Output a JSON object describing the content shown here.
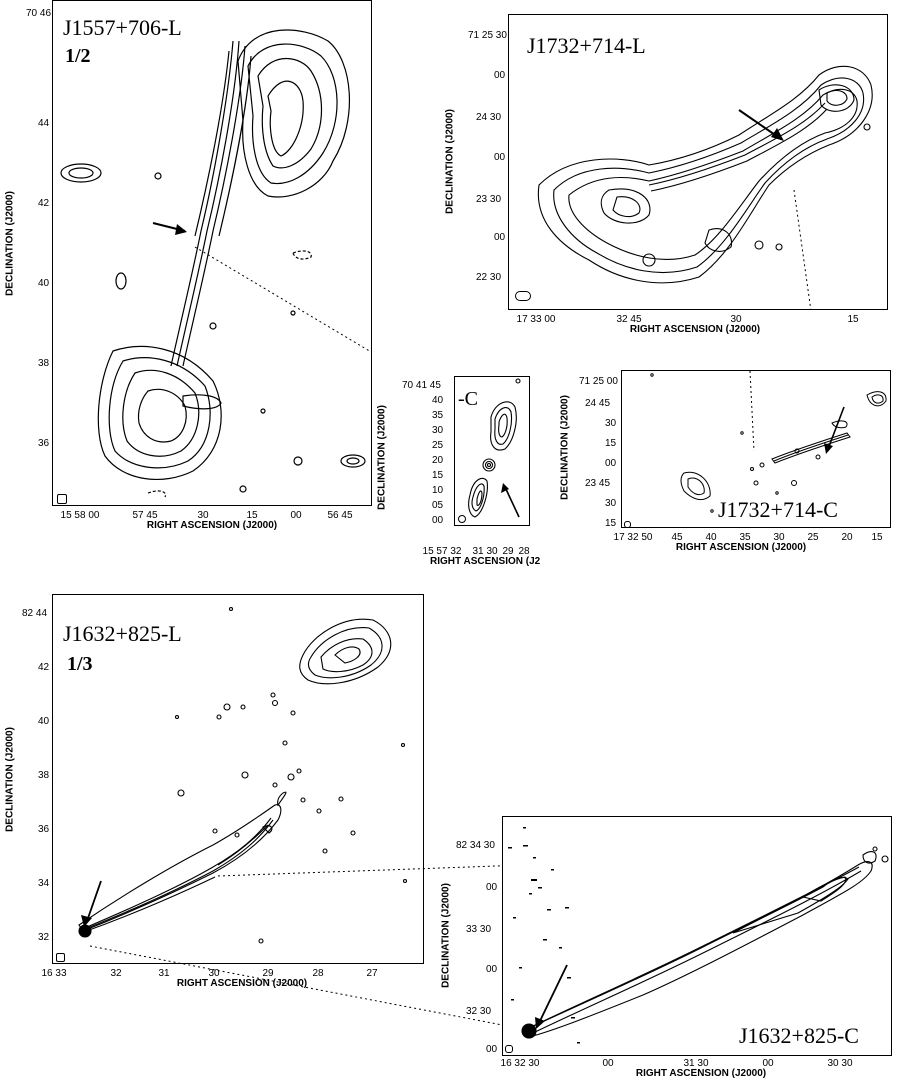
{
  "panels": {
    "p1": {
      "title": "J1557+706-L",
      "fraction": "1/2",
      "xlabel": "RIGHT ASCENSION (J2000)",
      "ylabel": "DECLINATION (J2000)",
      "dec_ticks": [
        "70 46",
        "44",
        "42",
        "40",
        "38",
        "36"
      ],
      "ra_ticks": [
        "15 58 00",
        "57 45",
        "30",
        "15",
        "00",
        "56 45"
      ]
    },
    "p2": {
      "title": "J1732+714-L",
      "xlabel": "RIGHT ASCENSION (J2000)",
      "ylabel": "DECLINATION (J2000)",
      "dec_ticks": [
        "71 25 30",
        "00",
        "24 30",
        "00",
        "23 30",
        "00",
        "22 30"
      ],
      "ra_ticks": [
        "17 33 00",
        "32 45",
        "30",
        "15"
      ]
    },
    "p3": {
      "title": "-C",
      "xlabel": "RIGHT ASCENSION (J2",
      "ylabel": "DECLINATION (J2000)",
      "dec_ticks": [
        "70 41 45",
        "40",
        "35",
        "30",
        "25",
        "20",
        "15",
        "10",
        "05",
        "00"
      ],
      "ra_ticks": [
        "15 57 32",
        "31",
        "30",
        "29",
        "28"
      ]
    },
    "p4": {
      "title": "J1732+714-C",
      "xlabel": "RIGHT ASCENSION (J2000)",
      "ylabel": "DECLINATION (J2000)",
      "dec_ticks": [
        "71 25 00",
        "24 45",
        "30",
        "15",
        "00",
        "23 45",
        "30",
        "15"
      ],
      "ra_ticks": [
        "17 32 50",
        "45",
        "40",
        "35",
        "30",
        "25",
        "20",
        "15"
      ]
    },
    "p5": {
      "title": "J1632+825-L",
      "fraction": "1/3",
      "xlabel": "RIGHT ASCENSION (J2000)",
      "ylabel": "DECLINATION (J2000)",
      "dec_ticks": [
        "82 44",
        "42",
        "40",
        "38",
        "36",
        "34",
        "32"
      ],
      "ra_ticks": [
        "16 33",
        "32",
        "31",
        "30",
        "29",
        "28",
        "27"
      ]
    },
    "p6": {
      "title": "J1632+825-C",
      "xlabel": "RIGHT ASCENSION (J2000)",
      "ylabel": "DECLINATION (J2000)",
      "dec_ticks": [
        "82 34 30",
        "00",
        "33 30",
        "00",
        "32 30",
        "00"
      ],
      "ra_ticks": [
        "16 32 30",
        "00",
        "31 30",
        "00",
        "30 30"
      ]
    }
  }
}
